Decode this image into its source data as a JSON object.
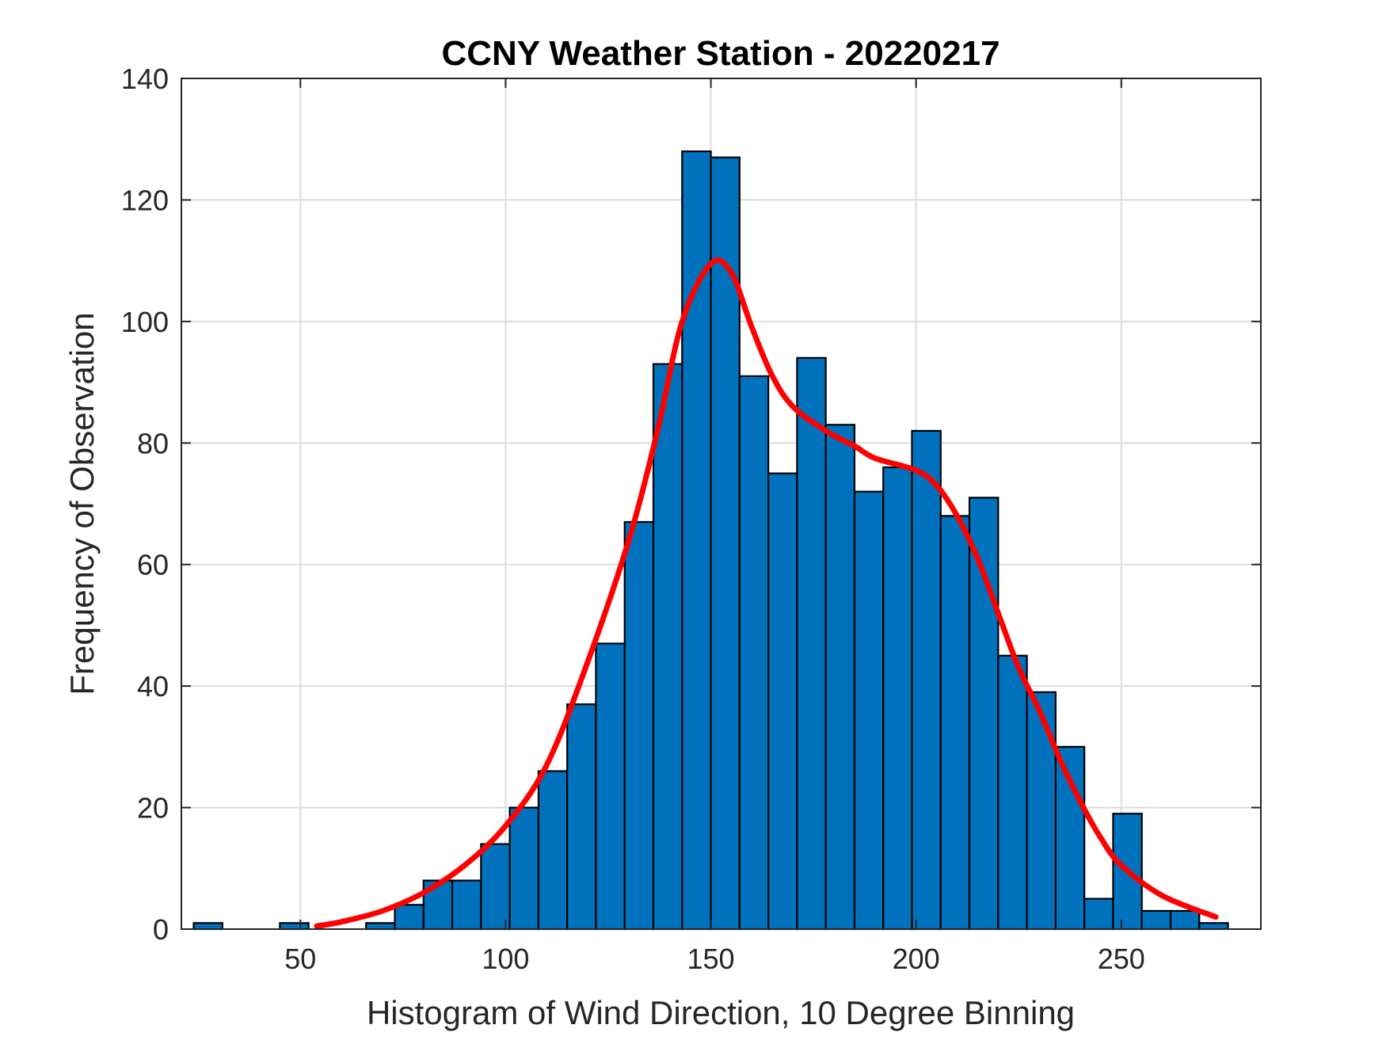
{
  "chart_data": {
    "type": "bar",
    "title": "CCNY Weather Station - 20220217",
    "xlabel": "Histogram of Wind Direction, 10 Degree Binning",
    "ylabel": "Frequency of Observation",
    "xlim": [
      21,
      284
    ],
    "ylim": [
      0,
      140
    ],
    "xticks": [
      50,
      100,
      150,
      200,
      250
    ],
    "yticks": [
      0,
      20,
      40,
      60,
      80,
      100,
      120,
      140
    ],
    "grid": true,
    "bin_width": 7,
    "series": [
      {
        "type": "histogram",
        "color": "#0072BD",
        "edge_color": "#000000",
        "bins": [
          {
            "x": 24,
            "value": 1
          },
          {
            "x": 31,
            "value": 0
          },
          {
            "x": 38,
            "value": 0
          },
          {
            "x": 45,
            "value": 1
          },
          {
            "x": 52,
            "value": 0
          },
          {
            "x": 59,
            "value": 0
          },
          {
            "x": 66,
            "value": 1
          },
          {
            "x": 73,
            "value": 4
          },
          {
            "x": 80,
            "value": 8
          },
          {
            "x": 87,
            "value": 8
          },
          {
            "x": 94,
            "value": 14
          },
          {
            "x": 101,
            "value": 20
          },
          {
            "x": 108,
            "value": 26
          },
          {
            "x": 115,
            "value": 37
          },
          {
            "x": 122,
            "value": 47
          },
          {
            "x": 129,
            "value": 67
          },
          {
            "x": 136,
            "value": 93
          },
          {
            "x": 143,
            "value": 128
          },
          {
            "x": 150,
            "value": 127
          },
          {
            "x": 157,
            "value": 91
          },
          {
            "x": 164,
            "value": 75
          },
          {
            "x": 171,
            "value": 94
          },
          {
            "x": 178,
            "value": 83
          },
          {
            "x": 185,
            "value": 72
          },
          {
            "x": 192,
            "value": 76
          },
          {
            "x": 199,
            "value": 82
          },
          {
            "x": 206,
            "value": 68
          },
          {
            "x": 213,
            "value": 71
          },
          {
            "x": 220,
            "value": 45
          },
          {
            "x": 227,
            "value": 39
          },
          {
            "x": 234,
            "value": 30
          },
          {
            "x": 241,
            "value": 5
          },
          {
            "x": 248,
            "value": 19
          },
          {
            "x": 255,
            "value": 3
          },
          {
            "x": 262,
            "value": 3
          },
          {
            "x": 269,
            "value": 1
          }
        ]
      },
      {
        "type": "line",
        "color": "#FF0000",
        "points": [
          [
            54,
            0.5
          ],
          [
            60,
            1.2
          ],
          [
            70,
            3
          ],
          [
            80,
            6
          ],
          [
            90,
            10.5
          ],
          [
            100,
            17
          ],
          [
            110,
            27
          ],
          [
            120,
            44
          ],
          [
            130,
            64
          ],
          [
            137,
            82
          ],
          [
            143,
            100
          ],
          [
            150,
            109.5
          ],
          [
            155,
            108
          ],
          [
            160,
            99
          ],
          [
            165,
            91
          ],
          [
            170,
            86
          ],
          [
            178,
            82
          ],
          [
            185,
            79.5
          ],
          [
            190,
            77.5
          ],
          [
            200,
            75.5
          ],
          [
            205,
            73
          ],
          [
            210,
            68
          ],
          [
            215,
            61
          ],
          [
            220,
            52
          ],
          [
            225,
            43
          ],
          [
            230,
            36
          ],
          [
            235,
            28
          ],
          [
            240,
            21
          ],
          [
            245,
            15
          ],
          [
            250,
            10.5
          ],
          [
            260,
            5.5
          ],
          [
            273,
            2
          ]
        ]
      }
    ]
  }
}
